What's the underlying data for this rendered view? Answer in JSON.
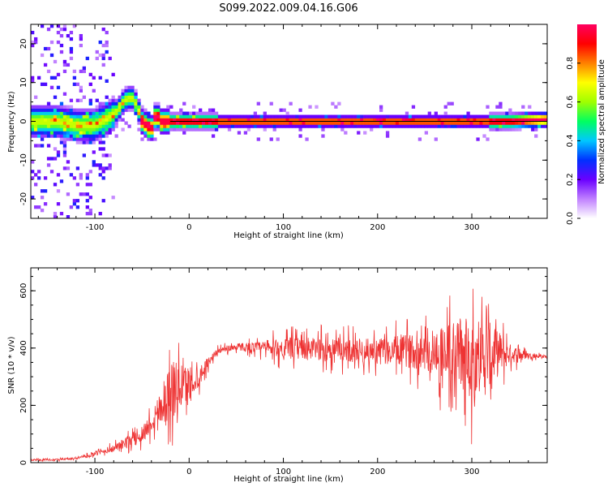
{
  "title": "S099.2022.009.04.16.G06",
  "chart_data": [
    {
      "type": "heatmap",
      "xlabel": "Height of straight line (km)",
      "ylabel": "Frequency (Hz)",
      "xlim": [
        -168,
        380
      ],
      "ylim": [
        -25,
        25
      ],
      "x_ticks": [
        -100,
        0,
        100,
        200,
        300
      ],
      "x_tick_labels": [
        "-100",
        "0",
        "100",
        "200",
        "300"
      ],
      "y_ticks": [
        -20,
        -10,
        0,
        10,
        20
      ],
      "y_tick_labels": [
        "-20",
        "-10",
        "0",
        "10",
        "20"
      ],
      "reference_line_y": 0,
      "ridge": {
        "x": [
          -165,
          -140,
          -120,
          -100,
          -85,
          -75,
          -70,
          -65,
          -60,
          -55,
          -50,
          -45,
          -40,
          -35,
          -30,
          -25,
          -20,
          0,
          40,
          50,
          100,
          150,
          200,
          250,
          300,
          340,
          380
        ],
        "y": [
          0,
          0,
          -1,
          -1,
          1,
          3,
          5,
          6,
          6,
          4,
          0,
          -1,
          -2,
          2,
          0,
          0,
          0,
          0,
          0,
          0,
          0,
          0,
          0,
          0,
          0,
          0,
          0.5
        ]
      },
      "colorbar": {
        "label": "Normalized spectral amplitude",
        "range": [
          0,
          1
        ],
        "ticks": [
          0,
          0.2,
          0.4,
          0.6,
          0.8
        ],
        "tick_labels": [
          "0.0",
          "0.2",
          "0.4",
          "0.6",
          "0.8"
        ],
        "colors": [
          "#ffffff",
          "#c080ff",
          "#6a00ff",
          "#0030ff",
          "#00c8ff",
          "#00ff60",
          "#a0ff00",
          "#ffff00",
          "#ff8000",
          "#ff0000",
          "#ff0060"
        ]
      },
      "grid": false
    },
    {
      "type": "line",
      "xlabel": "Height of straight line (km)",
      "ylabel": "SNR (10 * v/v)",
      "xlim": [
        -168,
        380
      ],
      "ylim": [
        0,
        680
      ],
      "x_ticks": [
        -100,
        0,
        100,
        200,
        300
      ],
      "x_tick_labels": [
        "-100",
        "0",
        "100",
        "200",
        "300"
      ],
      "y_ticks": [
        0,
        200,
        400,
        600
      ],
      "y_tick_labels": [
        "0",
        "200",
        "400",
        "600"
      ],
      "series": [
        {
          "color": "#ee3333",
          "x": [
            -168,
            -140,
            -120,
            -100,
            -80,
            -60,
            -50,
            -40,
            -30,
            -20,
            -10,
            0,
            10,
            20,
            30,
            50,
            80,
            100,
            150,
            200,
            250,
            280,
            300,
            320,
            340,
            360,
            380
          ],
          "y": [
            10,
            10,
            15,
            30,
            50,
            80,
            100,
            140,
            200,
            250,
            260,
            280,
            300,
            350,
            390,
            405,
            400,
            400,
            395,
            390,
            390,
            380,
            370,
            380,
            380,
            375,
            370
          ],
          "spread": [
            5,
            5,
            6,
            10,
            20,
            40,
            50,
            60,
            110,
            180,
            140,
            100,
            60,
            30,
            15,
            20,
            40,
            60,
            70,
            70,
            110,
            200,
            240,
            180,
            60,
            15,
            8
          ]
        }
      ],
      "grid": false
    }
  ]
}
